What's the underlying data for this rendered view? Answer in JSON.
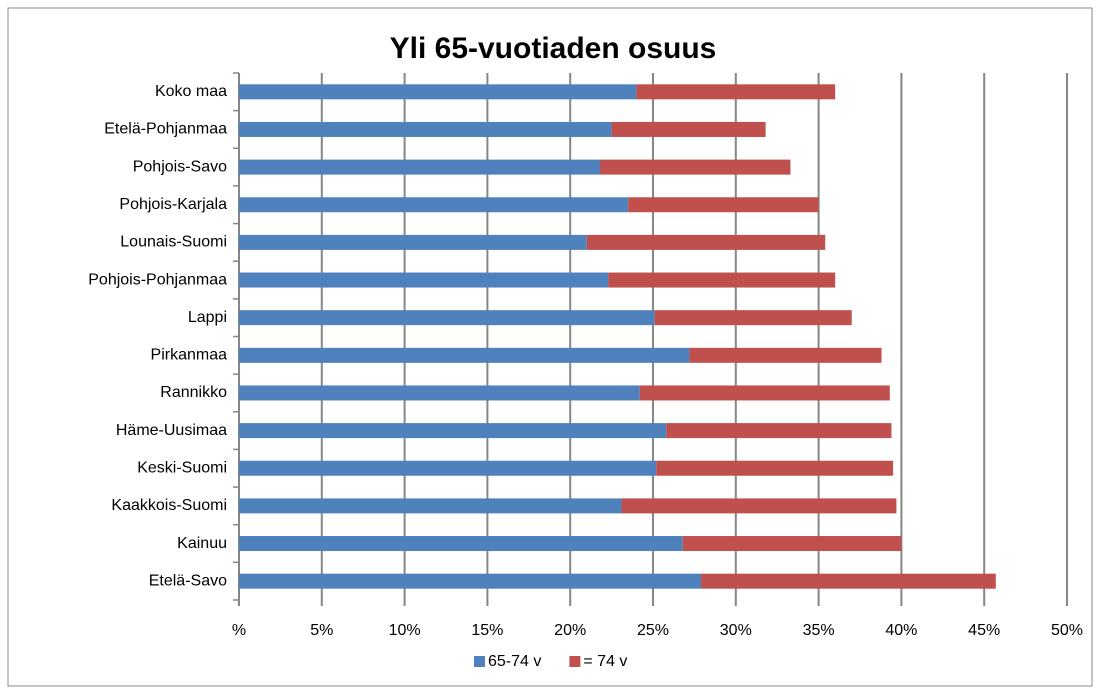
{
  "chart_data": {
    "type": "stacked-bar-horizontal",
    "title": "Yli 65-vuotiaden osuus",
    "categories": [
      "Koko maa",
      "Etelä-Pohjanmaa",
      "Pohjois-Savo",
      "Pohjois-Karjala",
      "Lounais-Suomi",
      "Pohjois-Pohjanmaa",
      "Lappi",
      "Pirkanmaa",
      "Rannikko",
      "Häme-Uusimaa",
      "Keski-Suomi",
      "Kaakkois-Suomi",
      "Kainuu",
      "Etelä-Savo"
    ],
    "series": [
      {
        "name": "65-74 v",
        "color": "#4f81bd",
        "values": [
          24.0,
          22.5,
          21.8,
          23.5,
          21.0,
          22.3,
          25.1,
          27.2,
          24.2,
          25.8,
          25.2,
          23.1,
          26.8,
          27.9
        ]
      },
      {
        "name": "= 74 v",
        "color": "#c0504d",
        "values": [
          12.0,
          9.3,
          11.5,
          11.5,
          14.4,
          13.7,
          11.9,
          11.6,
          15.1,
          13.6,
          14.3,
          16.6,
          13.2,
          17.8
        ]
      }
    ],
    "xlim": [
      0,
      50
    ],
    "xticks": [
      {
        "value": 0,
        "label": "%"
      },
      {
        "value": 5,
        "label": "5%"
      },
      {
        "value": 10,
        "label": "10%"
      },
      {
        "value": 15,
        "label": "15%"
      },
      {
        "value": 20,
        "label": "20%"
      },
      {
        "value": 25,
        "label": "25%"
      },
      {
        "value": 30,
        "label": "30%"
      },
      {
        "value": 35,
        "label": "35%"
      },
      {
        "value": 40,
        "label": "40%"
      },
      {
        "value": 45,
        "label": "45%"
      },
      {
        "value": 50,
        "label": "50%"
      }
    ],
    "grid": true,
    "legend": "bottom"
  }
}
